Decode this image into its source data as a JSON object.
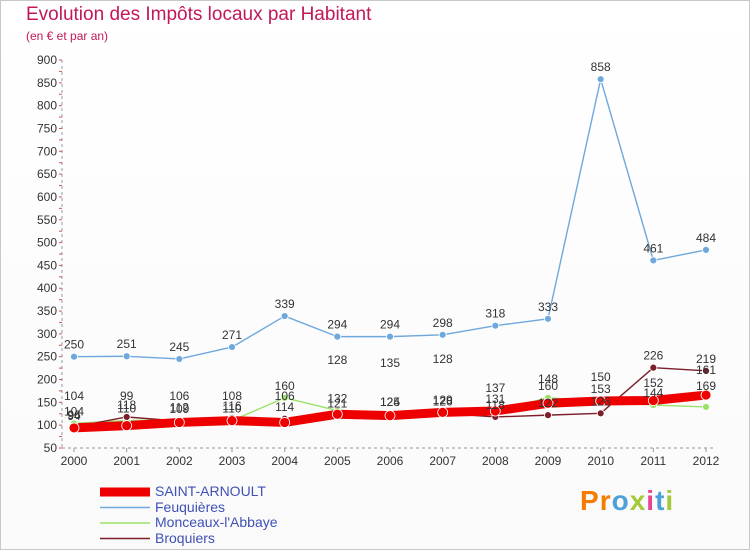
{
  "chart_data": {
    "type": "line",
    "title": "Evolution des Impôts locaux par Habitant",
    "subtitle": "(en € et par an)",
    "xlabel": "",
    "ylabel": "",
    "ylim": [
      50,
      900
    ],
    "yticks": [
      50,
      100,
      150,
      200,
      250,
      300,
      350,
      400,
      450,
      500,
      550,
      600,
      650,
      700,
      750,
      800,
      850,
      900
    ],
    "categories": [
      "2000",
      "2001",
      "2002",
      "2003",
      "2004",
      "2005",
      "2006",
      "2007",
      "2008",
      "2009",
      "2010",
      "2011",
      "2012"
    ],
    "series": [
      {
        "name": "SAINT-ARNOULT",
        "color": "#ee0000",
        "values": [
          94,
          99,
          106,
          110,
          106,
          124,
          121,
          128,
          131,
          148,
          153,
          154,
          166
        ],
        "labels": [
          "94",
          "",
          "",
          "",
          "",
          "",
          "",
          "",
          "",
          "",
          "",
          "",
          ""
        ]
      },
      {
        "name": "Feuquières",
        "color": "#6fa8dc",
        "values": [
          250,
          251,
          245,
          271,
          339,
          294,
          294,
          298,
          318,
          333,
          858,
          461,
          484
        ],
        "labels": [
          "250",
          "251",
          "245",
          "271",
          "339",
          "294",
          "294",
          "298",
          "318",
          "333",
          "858",
          "461",
          "484"
        ]
      },
      {
        "name": "Monceaux-l'Abbaye",
        "color": "#99e266",
        "values": [
          104,
          110,
          112,
          110,
          160,
          132,
          125,
          129,
          131,
          160,
          153,
          144,
          140
        ],
        "labels": [
          "104",
          "110",
          "112",
          "110",
          "160",
          "132",
          "125",
          "129",
          "131",
          "160",
          "153",
          "144",
          ""
        ]
      },
      {
        "name": "Broquiers",
        "color": "#7b1f2a",
        "values": [
          96,
          118,
          109,
          116,
          114,
          121,
          124,
          126,
          118,
          122,
          126,
          226,
          219
        ],
        "labels": [
          "96",
          "118",
          "109",
          "116",
          "114",
          "121",
          "124",
          "126",
          "118",
          "122",
          "126",
          "226",
          "219"
        ]
      }
    ],
    "extra_labels": [
      {
        "x": "2000",
        "text": "104"
      },
      {
        "x": "2001",
        "text": "99"
      },
      {
        "x": "2002",
        "text": "106"
      },
      {
        "x": "2003",
        "text": "108"
      },
      {
        "x": "2004",
        "text": "106"
      },
      {
        "x": "2005",
        "text": "128"
      },
      {
        "x": "2006",
        "text": "135"
      },
      {
        "x": "2007",
        "text": "128"
      },
      {
        "x": "2008",
        "text": "137"
      },
      {
        "x": "2009",
        "text": "148"
      },
      {
        "x": "2010",
        "text": "150"
      },
      {
        "x": "2011",
        "text": "152"
      },
      {
        "x": "2012",
        "text": "161"
      },
      {
        "x": "2012",
        "text": "169"
      }
    ],
    "legend_position": "bottom-left",
    "grid": false
  },
  "brand": {
    "letters": [
      "P",
      "r",
      "o",
      "x",
      "i",
      "t",
      "i"
    ],
    "colors": [
      "#f57c00",
      "#f57c00",
      "#4ea0d8",
      "#a6c93a",
      "#e84393",
      "#4ea0d8",
      "#a6c93a"
    ]
  }
}
